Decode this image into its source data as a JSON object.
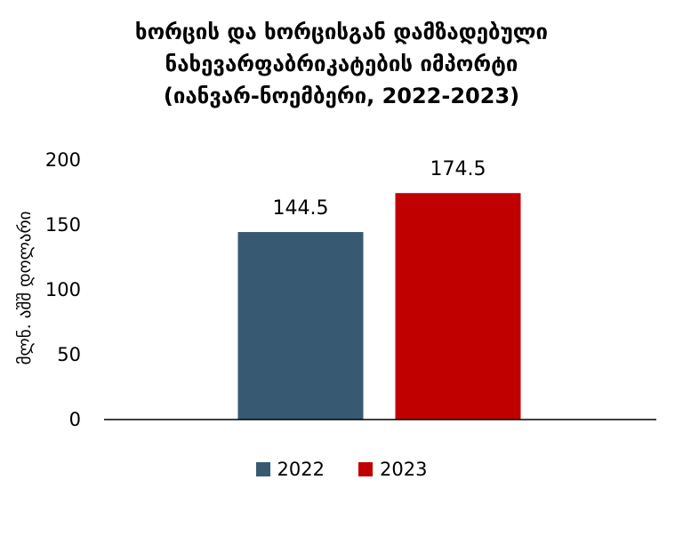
{
  "chart_data": {
    "type": "bar",
    "title": [
      "ხორცის და ხორცისგან დამზადებული",
      "ნახევარფაბრიკატების იმპორტი",
      "(იანვარ-ნოემბერი, 2022-2023)"
    ],
    "ylabel": "მლნ. აშშ დოლარი",
    "xlabel": "",
    "categories": [
      "2022",
      "2023"
    ],
    "values": [
      144.5,
      174.5
    ],
    "value_labels": [
      "144.5",
      "174.5"
    ],
    "colors": [
      "#375A72",
      "#C00000"
    ],
    "ylim": [
      0,
      200
    ],
    "yticks": [
      0,
      50,
      100,
      150,
      200
    ],
    "ytick_labels": [
      "0",
      "50",
      "100",
      "150",
      "200"
    ],
    "grid": false,
    "legend": {
      "placement": "bottom",
      "entries": [
        {
          "label": "2022",
          "color": "#375A72"
        },
        {
          "label": "2023",
          "color": "#C00000"
        }
      ]
    }
  }
}
